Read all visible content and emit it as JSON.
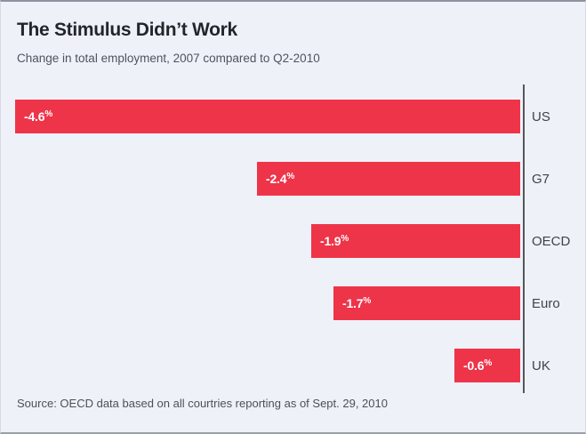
{
  "panel": {
    "title": "The Stimulus Didn’t Work",
    "subtitle": "Change in total employment, 2007 compared to Q2-2010",
    "source": "Source: OECD data based on all courtries reporting as of Sept. 29, 2010"
  },
  "colors": {
    "background": "#eff1f8",
    "bar": "#ee3449",
    "axis": "#53575d",
    "bar_label_text": "#ffffff",
    "category_text": "#3e444c"
  },
  "chart_data": {
    "type": "bar",
    "orientation": "horizontal",
    "title": "The Stimulus Didn’t Work",
    "subtitle": "Change in total employment, 2007 compared to Q2-2010",
    "categories": [
      "US",
      "G7",
      "OECD",
      "Euro",
      "UK"
    ],
    "values": [
      -4.6,
      -2.4,
      -1.9,
      -1.7,
      -0.6
    ],
    "value_labels": [
      "-4.6%",
      "-2.4%",
      "-1.9%",
      "-1.7%",
      "-0.6%"
    ],
    "unit": "%",
    "xlabel": "",
    "ylabel": "",
    "xlim": [
      -4.7,
      0
    ],
    "baseline_axis_side": "right",
    "grid": false,
    "legend": false,
    "source": "Source: OECD data based on all courtries reporting as of Sept. 29, 2010"
  }
}
